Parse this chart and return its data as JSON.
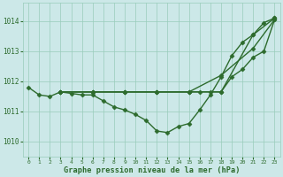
{
  "title": "Graphe pression niveau de la mer (hPa)",
  "background_color": "#cce8e8",
  "grid_color": "#99ccbb",
  "line_color": "#2d6b2d",
  "xlim": [
    -0.5,
    23.5
  ],
  "ylim": [
    1009.5,
    1014.6
  ],
  "yticks": [
    1010,
    1011,
    1012,
    1013,
    1014
  ],
  "xticks": [
    0,
    1,
    2,
    3,
    4,
    5,
    6,
    7,
    8,
    9,
    10,
    11,
    12,
    13,
    14,
    15,
    16,
    17,
    18,
    19,
    20,
    21,
    22,
    23
  ],
  "series": [
    {
      "x": [
        0,
        1,
        2,
        3,
        4,
        5,
        6,
        7,
        8,
        9,
        10,
        11,
        12,
        13,
        14,
        15,
        16,
        17,
        18,
        19,
        20,
        21,
        22,
        23
      ],
      "y": [
        1011.8,
        1011.55,
        1011.5,
        1011.65,
        1011.6,
        1011.55,
        1011.55,
        1011.35,
        1011.15,
        1011.05,
        1010.9,
        1010.7,
        1010.35,
        1010.3,
        1010.5,
        1010.6,
        1011.05,
        1011.55,
        1012.15,
        1012.85,
        1013.3,
        1013.55,
        1013.95,
        1014.1
      ]
    },
    {
      "x": [
        3,
        6,
        9,
        12,
        15,
        18,
        21,
        23
      ],
      "y": [
        1011.65,
        1011.65,
        1011.65,
        1011.65,
        1011.65,
        1011.65,
        1013.55,
        1014.1
      ]
    },
    {
      "x": [
        3,
        6,
        9,
        12,
        15,
        18,
        21,
        23
      ],
      "y": [
        1011.65,
        1011.65,
        1011.65,
        1011.65,
        1011.65,
        1012.2,
        1013.1,
        1014.05
      ]
    },
    {
      "x": [
        3,
        6,
        9,
        12,
        15,
        16,
        17,
        18,
        19,
        20,
        21,
        22,
        23
      ],
      "y": [
        1011.65,
        1011.65,
        1011.65,
        1011.65,
        1011.65,
        1011.65,
        1011.65,
        1011.65,
        1012.15,
        1012.4,
        1012.8,
        1013.0,
        1014.05
      ]
    }
  ]
}
